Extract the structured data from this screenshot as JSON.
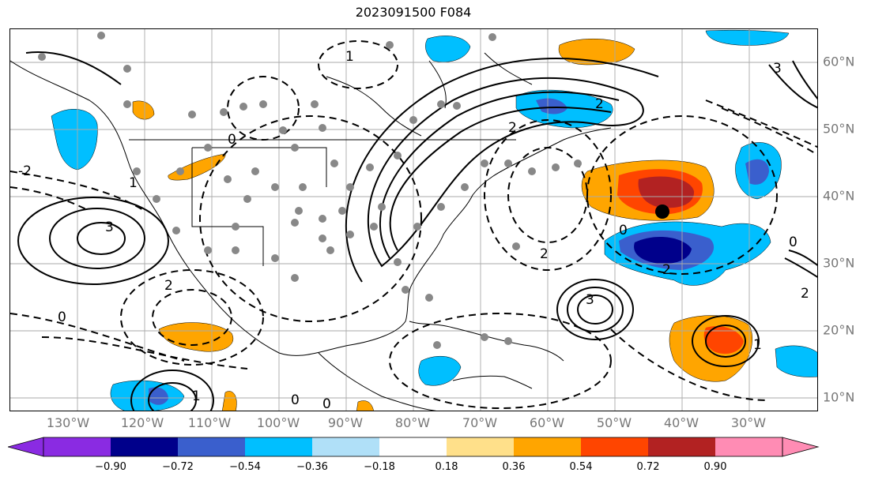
{
  "title": "2023091500 F084",
  "lon_labels": [
    "130°W",
    "120°W",
    "110°W",
    "100°W",
    "90°W",
    "80°W",
    "70°W",
    "60°W",
    "50°W",
    "40°W",
    "30°W"
  ],
  "lat_labels": [
    "60°N",
    "50°N",
    "40°N",
    "30°N",
    "20°N",
    "10°N"
  ],
  "colorbar": {
    "tick_labels": [
      "−0.90",
      "−0.72",
      "−0.54",
      "−0.36",
      "−0.18",
      "0.18",
      "0.36",
      "0.54",
      "0.72",
      "0.90"
    ],
    "colors": [
      "#8a2be2",
      "#00008b",
      "#3a5fcd",
      "#00bfff",
      "#b0e0f8",
      "#ffffff",
      "#ffe08a",
      "#ffa500",
      "#ff4500",
      "#b22222",
      "#ff8cb4"
    ]
  },
  "contour_labels": [
    "0",
    "1",
    "2",
    "3",
    "-2",
    "-1"
  ],
  "marker": {
    "lon": -44,
    "lat": 38
  }
}
